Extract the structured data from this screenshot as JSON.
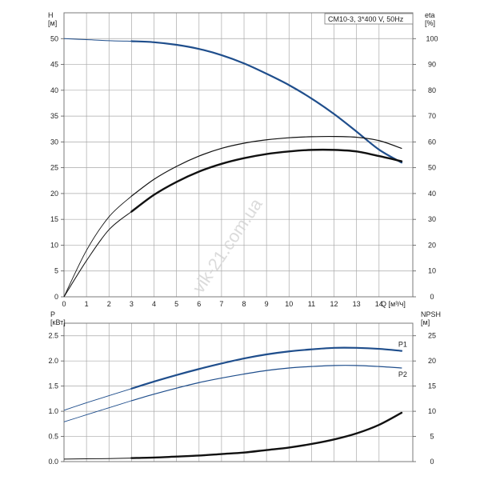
{
  "colors": {
    "head_curve": "#1f4e8c",
    "eta_curve": "#111111",
    "p1_curve": "#1f4e8c",
    "p2_curve": "#1f4e8c",
    "npsh_curve": "#111111",
    "grid": "#a9a9a9",
    "series_label": "#1f4e8c"
  },
  "watermark": "vik-21.com.ua",
  "chart_data": [
    {
      "type": "line",
      "title": "CM10-3, 3*400 V, 50Hz",
      "xlabel": "Q [м³/ч]",
      "ylabel": "H\n[м]",
      "y2label": "eta\n[%]",
      "xlim": [
        0,
        15.5
      ],
      "ylim": [
        0,
        55
      ],
      "y2lim": [
        0,
        110
      ],
      "x_ticks": [
        0,
        1,
        2,
        3,
        4,
        5,
        6,
        7,
        8,
        9,
        10,
        11,
        12,
        13,
        14
      ],
      "y_ticks": [
        0,
        5,
        10,
        15,
        20,
        25,
        30,
        35,
        40,
        45,
        50
      ],
      "y2_ticks": [
        0,
        10,
        20,
        30,
        40,
        50,
        60,
        70,
        80,
        90,
        100
      ],
      "grid": true,
      "series": [
        {
          "key": "H",
          "axis": "left",
          "x": [
            0,
            1,
            2,
            3,
            4,
            5,
            6,
            7,
            8,
            9,
            10,
            11,
            12,
            13,
            14,
            15
          ],
          "y": [
            50,
            49.8,
            49.6,
            49.5,
            49.3,
            48.8,
            48,
            46.8,
            45.2,
            43.2,
            41,
            38.4,
            35.4,
            32,
            28.5,
            26
          ]
        },
        {
          "key": "eta_overall",
          "axis": "right",
          "x": [
            0,
            1,
            2,
            3,
            4,
            5,
            6,
            7,
            8,
            9,
            10,
            11,
            12,
            13,
            14,
            15
          ],
          "y": [
            0,
            14,
            26,
            33,
            39.5,
            44.5,
            48.5,
            51.5,
            53.7,
            55.3,
            56.3,
            56.9,
            56.9,
            56.3,
            54.5,
            52.5
          ]
        },
        {
          "key": "eta_hydraulic",
          "axis": "right",
          "x": [
            0,
            1,
            2,
            3,
            4,
            5,
            6,
            7,
            8,
            9,
            10,
            11,
            12,
            13,
            14,
            15
          ],
          "y": [
            0,
            18,
            31,
            39,
            45.5,
            50.5,
            54.5,
            57.5,
            59.5,
            60.8,
            61.6,
            62,
            62.1,
            61.8,
            60.5,
            57.5
          ]
        }
      ]
    },
    {
      "type": "line",
      "title": "",
      "xlabel": "",
      "ylabel": "P\n[кВт]",
      "y2label": "NPSH\n[м]",
      "xlim": [
        0,
        15.5
      ],
      "ylim": [
        0,
        2.75
      ],
      "y2lim": [
        0,
        27.5
      ],
      "y_ticks": [
        0.0,
        0.5,
        1.0,
        1.5,
        2.0,
        2.5
      ],
      "y_tick_labels": [
        "0.0",
        "0.5",
        "1.0",
        "1.5",
        "2.0",
        "2.5"
      ],
      "y2_ticks": [
        0,
        5,
        10,
        15,
        20,
        25
      ],
      "grid": true,
      "series": [
        {
          "key": "P1",
          "name": "P1",
          "axis": "left",
          "x": [
            0,
            1,
            2,
            3,
            4,
            5,
            6,
            7,
            8,
            9,
            10,
            11,
            12,
            13,
            14,
            15
          ],
          "y": [
            1.02,
            1.17,
            1.31,
            1.45,
            1.59,
            1.72,
            1.84,
            1.95,
            2.05,
            2.13,
            2.19,
            2.23,
            2.26,
            2.26,
            2.24,
            2.2
          ]
        },
        {
          "key": "P2",
          "name": "P2",
          "axis": "left",
          "x": [
            0,
            1,
            2,
            3,
            4,
            5,
            6,
            7,
            8,
            9,
            10,
            11,
            12,
            13,
            14,
            15
          ],
          "y": [
            0.79,
            0.93,
            1.07,
            1.21,
            1.34,
            1.46,
            1.57,
            1.66,
            1.74,
            1.81,
            1.86,
            1.89,
            1.91,
            1.91,
            1.89,
            1.86
          ]
        },
        {
          "key": "NPSH",
          "axis": "right",
          "x": [
            0,
            1,
            2,
            3,
            4,
            5,
            6,
            7,
            8,
            9,
            10,
            11,
            12,
            13,
            14,
            15
          ],
          "y": [
            0.5,
            0.55,
            0.6,
            0.7,
            0.8,
            1.0,
            1.2,
            1.5,
            1.8,
            2.3,
            2.8,
            3.5,
            4.4,
            5.6,
            7.3,
            9.7
          ]
        }
      ]
    }
  ]
}
